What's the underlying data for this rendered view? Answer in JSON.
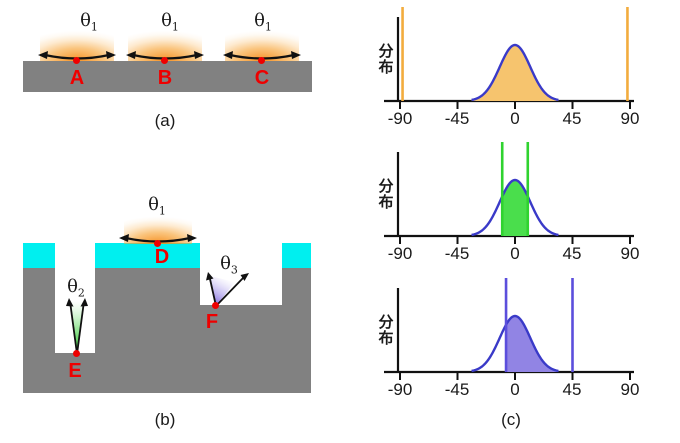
{
  "figure": {
    "panel_a": {
      "caption": "(a)",
      "emitters": [
        {
          "label": "A",
          "theta_symbol": "θ",
          "theta_sub": "1"
        },
        {
          "label": "B",
          "theta_symbol": "θ",
          "theta_sub": "1"
        },
        {
          "label": "C",
          "theta_symbol": "θ",
          "theta_sub": "1"
        }
      ]
    },
    "panel_b": {
      "caption": "(b)",
      "d": {
        "label": "D",
        "theta_symbol": "θ",
        "theta_sub": "1"
      },
      "e": {
        "label": "E",
        "theta_symbol": "θ",
        "theta_sub": "2"
      },
      "f": {
        "label": "F",
        "theta_symbol": "θ",
        "theta_sub": "3"
      }
    },
    "panel_c": {
      "caption": "(c)",
      "ylabel_char_top": "分",
      "ylabel_char_bottom": "布",
      "tick_labels": [
        "-90",
        "-45",
        "0",
        "45",
        "90"
      ]
    }
  },
  "colors": {
    "substrate_gray": "#818181",
    "coating_cyan": "#00efef",
    "marker_red": "#ee0000",
    "curve_outline_blue": "#3a3ac8",
    "fill_orange": "#f6c46e",
    "line_orange": "#f2ac3e",
    "fill_green": "#4ade4c",
    "line_green": "#2fd32f",
    "fill_purple": "#9184e4",
    "line_purple": "#5b4edc"
  },
  "chart_data": [
    {
      "type": "area",
      "name": "angular-distribution-flat-surface",
      "ylabel": "分布",
      "x_ticks": [
        -90,
        -45,
        0,
        45,
        90
      ],
      "xlim": [
        -100,
        100
      ],
      "curve": {
        "shape": "gaussian",
        "center": 0,
        "sigma": 12,
        "clip": 34
      },
      "fill": {
        "from": -34,
        "to": 34,
        "color": "#f6c46e"
      },
      "outline_color": "#3a3ac8",
      "vlines": [
        {
          "x": -88,
          "color": "#f2ac3e"
        },
        {
          "x": 88,
          "color": "#f2ac3e"
        }
      ]
    },
    {
      "type": "area",
      "name": "angular-distribution-deep-trench",
      "ylabel": "分布",
      "x_ticks": [
        -90,
        -45,
        0,
        45,
        90
      ],
      "xlim": [
        -100,
        100
      ],
      "curve": {
        "shape": "gaussian",
        "center": 0,
        "sigma": 12,
        "clip": 34
      },
      "fill": {
        "from": -10,
        "to": 10,
        "color": "#4ade4c"
      },
      "outline_color": "#3a3ac8",
      "vlines": [
        {
          "x": -10,
          "color": "#2fd32f"
        },
        {
          "x": 10,
          "color": "#2fd32f"
        }
      ]
    },
    {
      "type": "area",
      "name": "angular-distribution-step-corner",
      "ylabel": "分布",
      "x_ticks": [
        -90,
        -45,
        0,
        45,
        90
      ],
      "xlim": [
        -100,
        100
      ],
      "curve": {
        "shape": "gaussian",
        "center": 0,
        "sigma": 12,
        "clip": 34
      },
      "fill": {
        "from": -7,
        "to": 34,
        "color": "#9184e4"
      },
      "outline_color": "#3a3ac8",
      "vlines": [
        {
          "x": -7,
          "color": "#5b4edc"
        },
        {
          "x": 45,
          "color": "#5b4edc"
        }
      ]
    }
  ]
}
